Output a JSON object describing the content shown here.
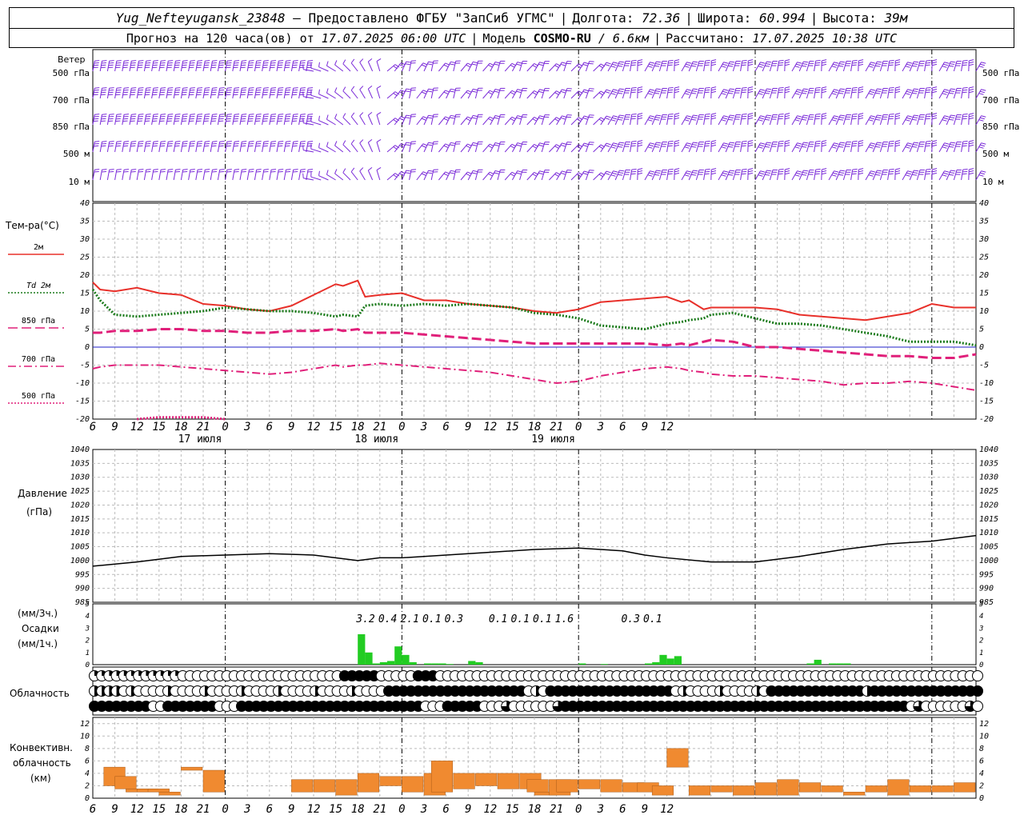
{
  "header": {
    "station": "Yug_Nefteyugansk_23848",
    "dash": " – ",
    "provided": "Предоставлено ФГБУ \"ЗапСиб УГМС\"",
    "lon_label": "Долгота:",
    "lon": "72.36",
    "lat_label": "Широта:",
    "lat": "60.994",
    "alt_label": "Высота:",
    "alt": "39м",
    "forecast": "Прогноз на 120 часа(ов) от",
    "forecast_time": "17.07.2025 06:00 UTC",
    "model_label": "Модель",
    "model": "COSMO-RU",
    "resolution": "/ 6.6км",
    "calc_label": "Рассчитано:",
    "calc_time": "17.07.2025 10:38 UTC"
  },
  "wind_panel": {
    "title": "Ветер",
    "levels": [
      "500 гПа",
      "700 гПа",
      "850 гПа",
      "500 м",
      "10 м"
    ]
  },
  "temp_panel": {
    "title": "Тем-ра(°C)",
    "legend": [
      {
        "label": "2м",
        "color": "#e8302a",
        "style": "solid"
      },
      {
        "label": "Td 2м",
        "color": "#1a7a1a",
        "style": "dotted"
      },
      {
        "label": "850 гПа",
        "color": "#e0207a",
        "style": "dashed"
      },
      {
        "label": "700 гПа",
        "color": "#e0207a",
        "style": "dashdot"
      },
      {
        "label": "500 гПа",
        "color": "#e0207a",
        "style": "dotted"
      }
    ]
  },
  "pressure_panel": {
    "title": "Давление",
    "unit": "(гПа)"
  },
  "precip_panel": {
    "unit3": "(мм/3ч.)",
    "title": "Осадки",
    "unit1": "(мм/1ч.)"
  },
  "cloud_panel": {
    "title": "Облачность"
  },
  "conv_panel": {
    "title1": "Конвективн.",
    "title2": "облачность",
    "unit": "(км)"
  },
  "x_axis": {
    "hour_ticks": [
      "6",
      "9",
      "12",
      "15",
      "18",
      "21",
      "0",
      "3",
      "6",
      "9",
      "12",
      "15",
      "18",
      "21",
      "0",
      "3",
      "6",
      "9",
      "12",
      "15",
      "18",
      "21",
      "0",
      "3",
      "6",
      "9",
      "12"
    ],
    "day_labels": [
      "17 июля",
      "18 июля",
      "19 июля"
    ]
  },
  "chart_data": [
    {
      "type": "line",
      "title": "Тем-ра(°C)",
      "x_hours": [
        0,
        1,
        3,
        6,
        9,
        12,
        15,
        18,
        21,
        24,
        27,
        30,
        33,
        34,
        36,
        37,
        39,
        42,
        45,
        48,
        51,
        54,
        57,
        60,
        63,
        66,
        69,
        72,
        75,
        78,
        80,
        81,
        83,
        84,
        87,
        90,
        93,
        96,
        99,
        102,
        105,
        108,
        111,
        114,
        117,
        120
      ],
      "ylim": [
        -20,
        40
      ],
      "yticks": [
        -20,
        -15,
        -10,
        -5,
        0,
        5,
        10,
        15,
        20,
        25,
        30,
        35,
        40
      ],
      "series": [
        {
          "name": "2м",
          "values": [
            18,
            16,
            15.5,
            16.5,
            15,
            14.5,
            12,
            11.5,
            10.5,
            10,
            11.5,
            14.5,
            17.5,
            17,
            18.5,
            14,
            14.5,
            15,
            13,
            13,
            12,
            11.5,
            11,
            10,
            9.5,
            10.5,
            12.5,
            13,
            13.5,
            14,
            12.5,
            13,
            10.5,
            11,
            11,
            11,
            10.5,
            9,
            8.5,
            8,
            7.5,
            8.5,
            9.5,
            12,
            11,
            11
          ]
        },
        {
          "name": "Td 2м",
          "values": [
            16,
            13,
            9,
            8.5,
            9,
            9.5,
            10,
            11,
            10.5,
            10,
            10,
            9.5,
            8.5,
            9,
            8.5,
            11.5,
            12,
            11.5,
            12,
            11.5,
            12,
            11.5,
            11,
            9.5,
            9,
            8,
            6,
            5.5,
            5,
            6.5,
            7,
            7.5,
            8,
            9,
            9.5,
            8,
            6.5,
            6.5,
            6,
            5,
            4,
            3,
            1.5,
            1.5,
            1.5,
            0.5
          ]
        },
        {
          "name": "850 гПа",
          "values": [
            4,
            4,
            4.5,
            4.5,
            5,
            5,
            4.5,
            4.5,
            4,
            4,
            4.5,
            4.5,
            5,
            4.5,
            5,
            4,
            4,
            4,
            3.5,
            3,
            2.5,
            2,
            1.5,
            1,
            1,
            1,
            1,
            1,
            1,
            0.5,
            1,
            0.5,
            1.5,
            2,
            1.5,
            0,
            0,
            -0.5,
            -1,
            -1.5,
            -2,
            -2.5,
            -2.5,
            -3,
            -3,
            -2
          ]
        },
        {
          "name": "700 гПа",
          "values": [
            -6,
            -5.5,
            -5,
            -5,
            -5,
            -5.5,
            -6,
            -6.5,
            -7,
            -7.5,
            -7,
            -6,
            -5,
            -5.5,
            -5,
            -5,
            -4.5,
            -5,
            -5.5,
            -6,
            -6.5,
            -7,
            -8,
            -9,
            -10,
            -9.5,
            -8,
            -7,
            -6,
            -5.5,
            -6,
            -6.5,
            -7,
            -7.5,
            -8,
            -8,
            -8.5,
            -9,
            -9.5,
            -10.5,
            -10,
            -10,
            -9.5,
            -10,
            -11,
            -12
          ]
        },
        {
          "name": "500 гПа",
          "values": [
            null,
            null,
            null,
            -20,
            -19.5,
            -19.5,
            -19.5,
            -20,
            null,
            null,
            null,
            null,
            -20,
            null,
            null,
            null,
            null,
            null,
            null,
            null,
            null,
            null,
            null,
            null,
            null,
            null,
            null,
            null,
            null,
            null,
            null,
            null,
            null,
            null,
            null,
            null,
            null,
            null,
            null,
            null,
            null,
            null,
            null,
            null,
            null,
            null
          ]
        }
      ]
    },
    {
      "type": "line",
      "title": "Давление",
      "ylabel": "(гПа)",
      "x_hours": [
        0,
        6,
        12,
        18,
        24,
        30,
        36,
        39,
        42,
        48,
        54,
        60,
        66,
        72,
        75,
        78,
        84,
        90,
        96,
        102,
        108,
        114,
        120
      ],
      "ylim": [
        985,
        1040
      ],
      "yticks": [
        985,
        990,
        995,
        1000,
        1005,
        1010,
        1015,
        1020,
        1025,
        1030,
        1035,
        1040
      ],
      "series": [
        {
          "name": "",
          "values": [
            998,
            999.5,
            1001.5,
            1002,
            1002.5,
            1002,
            1000,
            1001,
            1001,
            1002,
            1003,
            1004,
            1004.5,
            1003.5,
            1002,
            1001,
            999.5,
            999.5,
            1001.5,
            1004,
            1006,
            1007,
            1009
          ]
        }
      ]
    },
    {
      "type": "bar",
      "title": "Осадки",
      "ylabel": "(мм/3ч.) (мм/1ч.)",
      "ylim": [
        0,
        5
      ],
      "bars_mm_per_h": [
        [
          36,
          2.5
        ],
        [
          37,
          1
        ],
        [
          38,
          0.1
        ],
        [
          39,
          0.2
        ],
        [
          40,
          0.3
        ],
        [
          41,
          1.5
        ],
        [
          42,
          0.8
        ],
        [
          43,
          0.2
        ],
        [
          45,
          0.1
        ],
        [
          46,
          0.1
        ],
        [
          47,
          0.1
        ],
        [
          48,
          0.05
        ],
        [
          51,
          0.3
        ],
        [
          52,
          0.2
        ],
        [
          66,
          0.1
        ],
        [
          69,
          0.05
        ],
        [
          75,
          0.1
        ],
        [
          76,
          0.2
        ],
        [
          77,
          0.8
        ],
        [
          78,
          0.5
        ],
        [
          79,
          0.7
        ],
        [
          97,
          0.1
        ],
        [
          98,
          0.4
        ],
        [
          100,
          0.1
        ],
        [
          101,
          0.1
        ],
        [
          102,
          0.1
        ]
      ],
      "totals_3h": [
        {
          "x": 37.5,
          "value": "3.2"
        },
        {
          "x": 40.5,
          "value": "0.4"
        },
        {
          "x": 43.5,
          "value": "2.1"
        },
        {
          "x": 46.5,
          "value": "0.1"
        },
        {
          "x": 49.5,
          "value": "0.3"
        },
        {
          "x": 55.5,
          "value": "0.1"
        },
        {
          "x": 58.5,
          "value": "0.1"
        },
        {
          "x": 61.5,
          "value": "0.1"
        },
        {
          "x": 64.5,
          "value": "1.6"
        },
        {
          "x": 73.5,
          "value": "0.3"
        },
        {
          "x": 76.5,
          "value": "0.1"
        }
      ]
    },
    {
      "type": "bar",
      "title": "Конвективн. облачность",
      "ylabel": "(км)",
      "ylim": [
        0,
        13
      ],
      "yticks": [
        0,
        2,
        4,
        6,
        8,
        10,
        12
      ],
      "bars": [
        [
          1.5,
          2,
          5
        ],
        [
          3,
          1.5,
          3.5
        ],
        [
          4.5,
          1,
          1.5
        ],
        [
          6,
          1,
          1.5
        ],
        [
          7.5,
          1,
          1.5
        ],
        [
          9,
          0.5,
          1
        ],
        [
          12,
          4.5,
          5
        ],
        [
          15,
          1,
          4.5
        ],
        [
          27,
          1,
          3
        ],
        [
          30,
          1,
          3
        ],
        [
          33,
          0.5,
          3
        ],
        [
          36,
          1,
          4
        ],
        [
          39,
          2,
          3.5
        ],
        [
          42,
          1,
          3.5
        ],
        [
          45,
          0.5,
          4
        ],
        [
          46,
          1,
          6
        ],
        [
          49,
          1.5,
          4
        ],
        [
          52,
          2,
          4
        ],
        [
          55,
          1.5,
          4
        ],
        [
          58,
          1.5,
          4
        ],
        [
          59,
          1,
          3
        ],
        [
          60,
          0.5,
          1
        ],
        [
          62,
          0.5,
          3
        ],
        [
          63,
          1,
          3
        ],
        [
          66,
          1.5,
          3
        ],
        [
          69,
          1,
          3
        ],
        [
          72,
          1,
          2.5
        ],
        [
          74,
          1,
          2.5
        ],
        [
          76,
          0.5,
          2
        ],
        [
          78,
          5,
          8
        ],
        [
          81,
          0.5,
          2
        ],
        [
          84,
          1,
          2
        ],
        [
          87,
          0.5,
          2
        ],
        [
          90,
          0.5,
          2.5
        ],
        [
          93,
          0.5,
          3
        ],
        [
          96,
          1,
          2.5
        ],
        [
          99,
          1,
          2
        ],
        [
          102,
          0.5,
          1
        ],
        [
          105,
          1,
          2
        ],
        [
          108,
          0.5,
          3
        ],
        [
          111,
          1,
          2
        ],
        [
          114,
          1,
          2
        ],
        [
          117,
          1,
          2.5
        ]
      ]
    }
  ],
  "colors": {
    "t2m": "#e8302a",
    "td2m": "#1a7a1a",
    "upper": "#e0207a",
    "precip": "#22cc22",
    "conv": "#f08a30",
    "wind": "#7a2ad8",
    "zero": "#2020c8"
  }
}
